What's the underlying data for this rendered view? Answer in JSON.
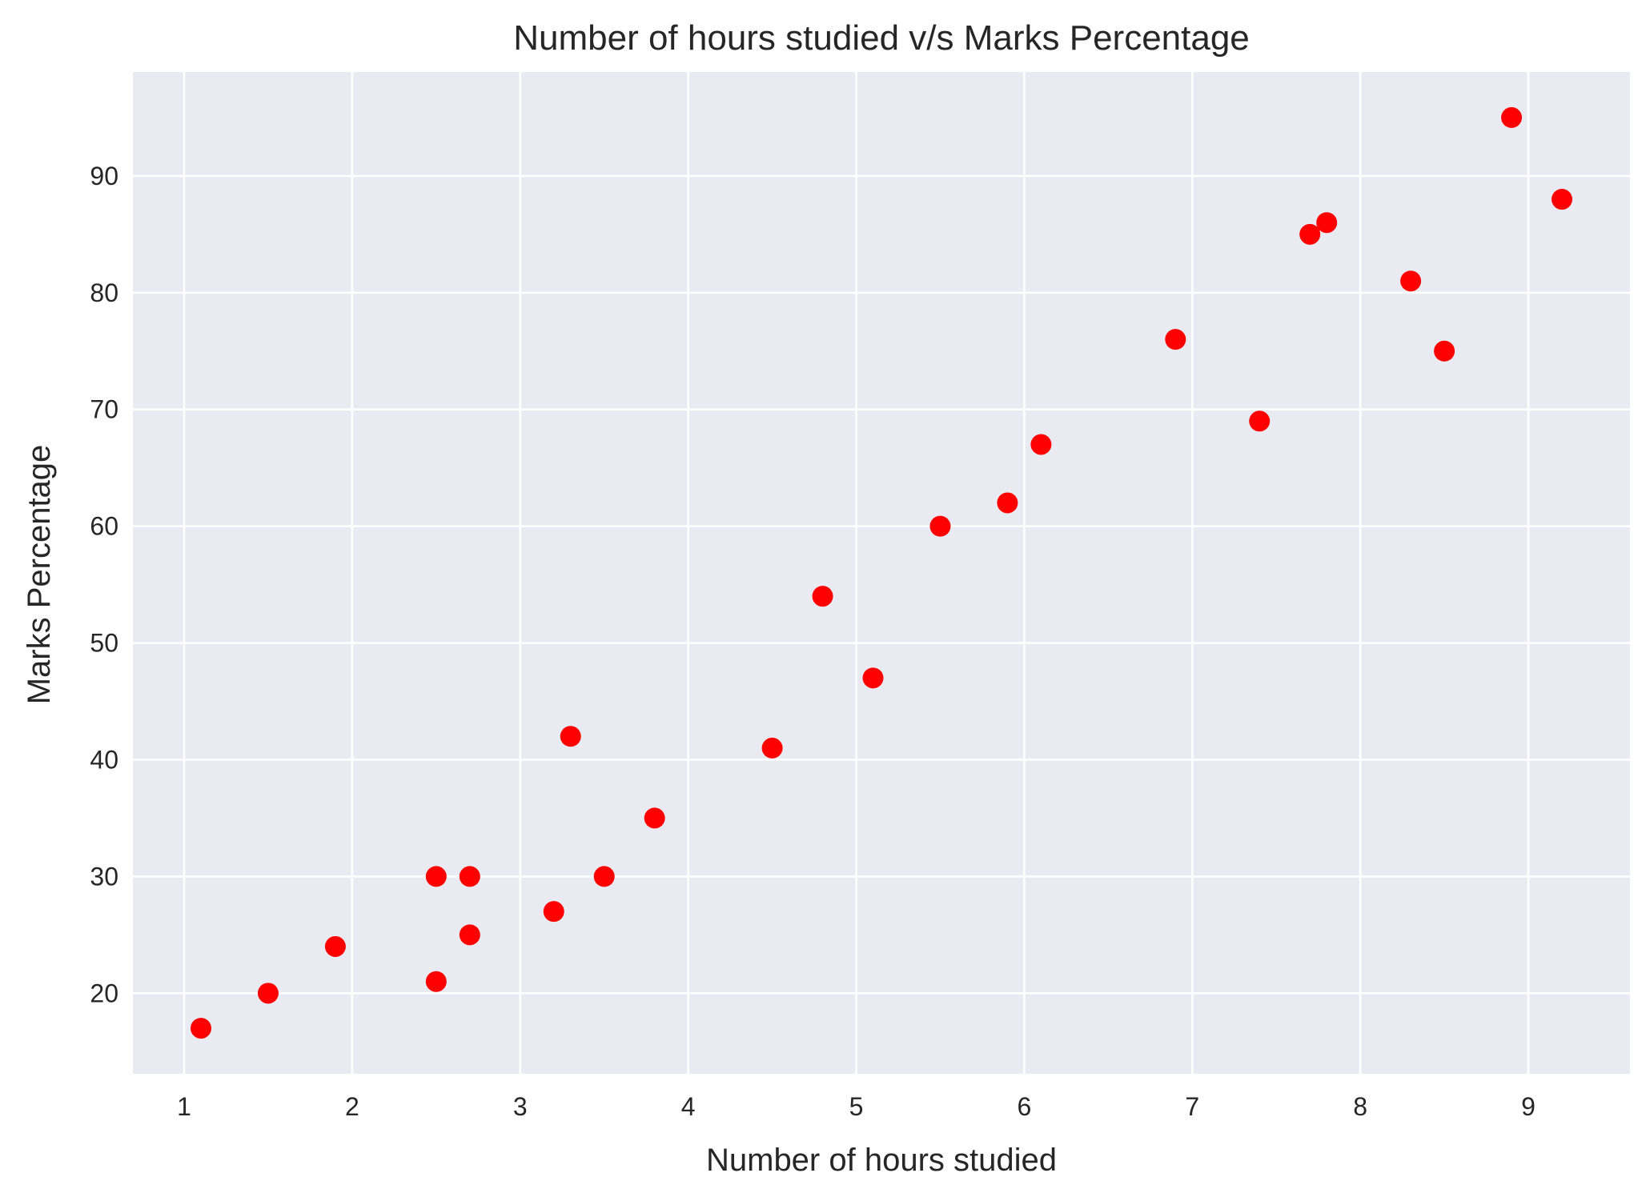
{
  "chart_data": {
    "type": "scatter",
    "title": "Number of hours studied v/s Marks Percentage",
    "xlabel": "Number of hours studied",
    "ylabel": "Marks Percentage",
    "xlim": [
      0.695,
      9.605
    ],
    "ylim": [
      13.1,
      98.9
    ],
    "xticks": [
      1,
      2,
      3,
      4,
      5,
      6,
      7,
      8,
      9
    ],
    "yticks": [
      20,
      30,
      40,
      50,
      60,
      70,
      80,
      90
    ],
    "grid": true,
    "legend": "none",
    "colors": {
      "background": "#eaeaf2",
      "grid": "#ffffff",
      "marker": "#ff0000",
      "text": "#262626"
    },
    "series": [
      {
        "x": [
          1.1,
          1.5,
          1.9,
          2.5,
          2.5,
          2.7,
          2.7,
          3.2,
          3.3,
          3.5,
          3.8,
          4.5,
          4.8,
          5.1,
          5.5,
          5.9,
          6.1,
          6.9,
          7.4,
          7.7,
          7.8,
          8.3,
          8.5,
          8.9,
          9.2
        ],
        "y": [
          17,
          20,
          24,
          21,
          30,
          25,
          30,
          27,
          42,
          30,
          35,
          41,
          54,
          47,
          60,
          62,
          67,
          76,
          69,
          85,
          86,
          81,
          75,
          95,
          88
        ]
      }
    ]
  }
}
